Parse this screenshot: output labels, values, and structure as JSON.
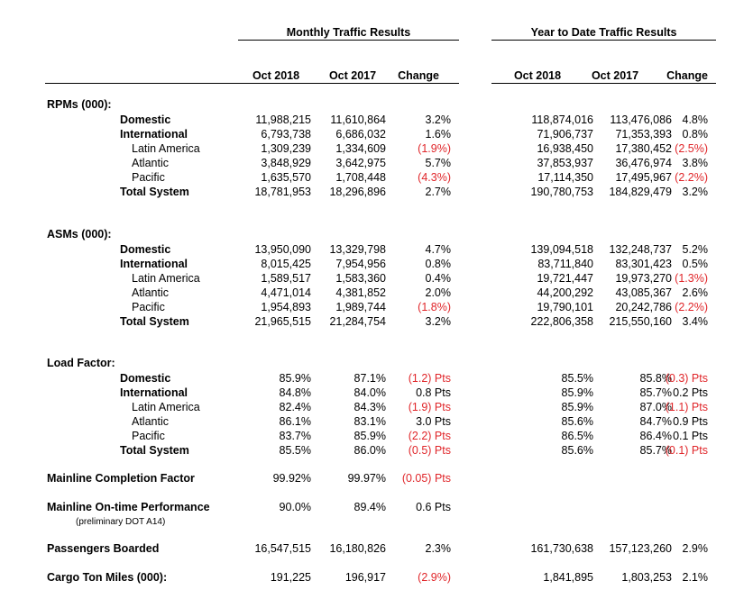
{
  "headers": {
    "monthly_title": "Monthly Traffic Results",
    "ytd_title": "Year to Date Traffic Results",
    "cols": [
      "Oct 2018",
      "Oct 2017",
      "Change",
      "Oct 2018",
      "Oct 2017",
      "Change"
    ]
  },
  "sections": [
    {
      "title": "RPMs (000):",
      "rows": [
        {
          "label": "Domestic",
          "level": 1,
          "bold": true,
          "v": [
            "11,988,215",
            "11,610,864",
            "3.2%",
            "118,874,016",
            "113,476,086",
            "4.8%"
          ]
        },
        {
          "label": "International",
          "level": 1,
          "bold": true,
          "v": [
            "6,793,738",
            "6,686,032",
            "1.6%",
            "71,906,737",
            "71,353,393",
            "0.8%"
          ]
        },
        {
          "label": "Latin America",
          "level": 2,
          "bold": false,
          "v": [
            "1,309,239",
            "1,334,609",
            "(1.9%)",
            "16,938,450",
            "17,380,452",
            "(2.5%)"
          ]
        },
        {
          "label": "Atlantic",
          "level": 2,
          "bold": false,
          "v": [
            "3,848,929",
            "3,642,975",
            "5.7%",
            "37,853,937",
            "36,476,974",
            "3.8%"
          ]
        },
        {
          "label": "Pacific",
          "level": 2,
          "bold": false,
          "v": [
            "1,635,570",
            "1,708,448",
            "(4.3%)",
            "17,114,350",
            "17,495,967",
            "(2.2%)"
          ]
        },
        {
          "label": "Total System",
          "level": 1,
          "bold": true,
          "v": [
            "18,781,953",
            "18,296,896",
            "2.7%",
            "190,780,753",
            "184,829,479",
            "3.2%"
          ]
        }
      ]
    },
    {
      "title": "ASMs (000):",
      "rows": [
        {
          "label": "Domestic",
          "level": 1,
          "bold": true,
          "v": [
            "13,950,090",
            "13,329,798",
            "4.7%",
            "139,094,518",
            "132,248,737",
            "5.2%"
          ]
        },
        {
          "label": "International",
          "level": 1,
          "bold": true,
          "v": [
            "8,015,425",
            "7,954,956",
            "0.8%",
            "83,711,840",
            "83,301,423",
            "0.5%"
          ]
        },
        {
          "label": "Latin America",
          "level": 2,
          "bold": false,
          "v": [
            "1,589,517",
            "1,583,360",
            "0.4%",
            "19,721,447",
            "19,973,270",
            "(1.3%)"
          ]
        },
        {
          "label": "Atlantic",
          "level": 2,
          "bold": false,
          "v": [
            "4,471,014",
            "4,381,852",
            "2.0%",
            "44,200,292",
            "43,085,367",
            "2.6%"
          ]
        },
        {
          "label": "Pacific",
          "level": 2,
          "bold": false,
          "v": [
            "1,954,893",
            "1,989,744",
            "(1.8%)",
            "19,790,101",
            "20,242,786",
            "(2.2%)"
          ]
        },
        {
          "label": "Total System",
          "level": 1,
          "bold": true,
          "v": [
            "21,965,515",
            "21,284,754",
            "3.2%",
            "222,806,358",
            "215,550,160",
            "3.4%"
          ]
        }
      ]
    },
    {
      "title": "Load Factor:",
      "rows": [
        {
          "label": "Domestic",
          "level": 1,
          "bold": true,
          "v": [
            "85.9%",
            "87.1%",
            "(1.2) Pts",
            "85.5%",
            "85.8%",
            "(0.3) Pts"
          ]
        },
        {
          "label": "International",
          "level": 1,
          "bold": true,
          "v": [
            "84.8%",
            "84.0%",
            "0.8 Pts",
            "85.9%",
            "85.7%",
            "0.2 Pts"
          ]
        },
        {
          "label": "Latin America",
          "level": 2,
          "bold": false,
          "v": [
            "82.4%",
            "84.3%",
            "(1.9) Pts",
            "85.9%",
            "87.0%",
            "(1.1) Pts"
          ]
        },
        {
          "label": "Atlantic",
          "level": 2,
          "bold": false,
          "v": [
            "86.1%",
            "83.1%",
            "3.0 Pts",
            "85.6%",
            "84.7%",
            "0.9 Pts"
          ]
        },
        {
          "label": "Pacific",
          "level": 2,
          "bold": false,
          "v": [
            "83.7%",
            "85.9%",
            "(2.2) Pts",
            "86.5%",
            "86.4%",
            "0.1 Pts"
          ]
        },
        {
          "label": "Total System",
          "level": 1,
          "bold": true,
          "v": [
            "85.5%",
            "86.0%",
            "(0.5) Pts",
            "85.6%",
            "85.7%",
            "(0.1) Pts"
          ]
        }
      ]
    }
  ],
  "single_rows": [
    {
      "label": "Mainline Completion Factor",
      "note": "",
      "v": [
        "99.92%",
        "99.97%",
        "(0.05) Pts",
        "",
        "",
        ""
      ]
    },
    {
      "label": "Mainline On-time Performance",
      "note": "(preliminary DOT A14)",
      "v": [
        "90.0%",
        "89.4%",
        "0.6 Pts",
        "",
        "",
        ""
      ]
    },
    {
      "label": "Passengers Boarded",
      "note": "",
      "v": [
        "16,547,515",
        "16,180,826",
        "2.3%",
        "161,730,638",
        "157,123,260",
        "2.9%"
      ]
    },
    {
      "label": "Cargo Ton Miles (000):",
      "note": "",
      "v": [
        "191,225",
        "196,917",
        "(2.9%)",
        "1,841,895",
        "1,803,253",
        "2.1%"
      ]
    }
  ],
  "colors": {
    "negative": "#e0262a",
    "text": "#000000"
  }
}
